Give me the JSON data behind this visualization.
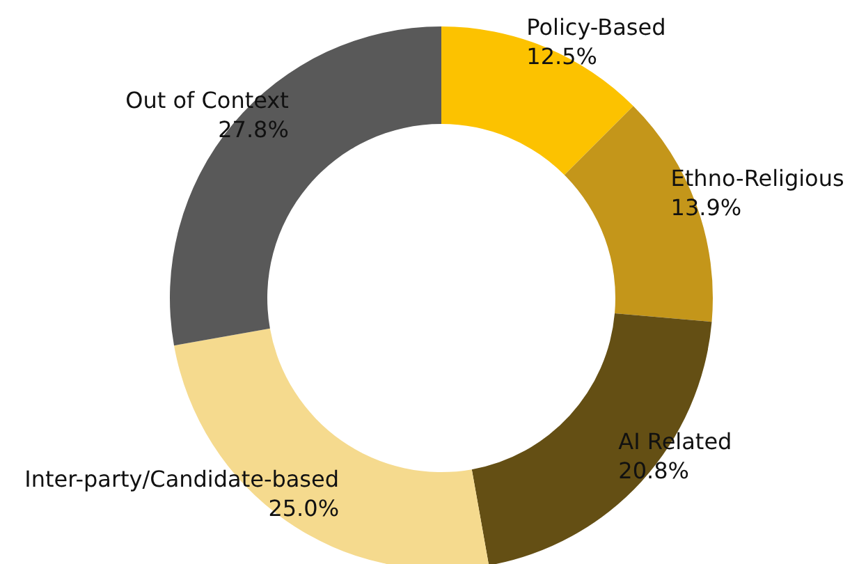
{
  "chart_data": {
    "type": "donut",
    "categories": [
      "Policy-Based",
      "Ethno-Religious",
      "AI Related",
      "Inter-party/Candidate-based",
      "Out of Context"
    ],
    "values": [
      12.5,
      13.9,
      20.8,
      25.0,
      27.8
    ],
    "value_labels": [
      "12.5%",
      "13.9%",
      "20.8%",
      "25.0%",
      "27.8%"
    ],
    "colors": [
      "#fcc200",
      "#c4961a",
      "#644f14",
      "#f5da8e",
      "#595959"
    ],
    "legend": false
  }
}
